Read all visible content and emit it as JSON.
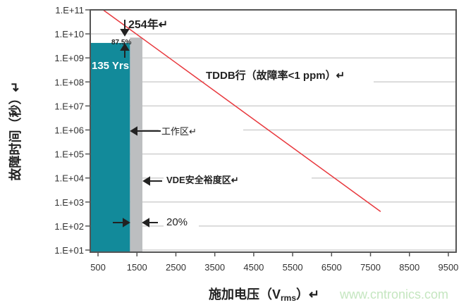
{
  "chart_data": {
    "type": "line",
    "title": "",
    "xlabel": "施加电压（Vrms）↵",
    "xlabel_main": "施加电压（V",
    "xlabel_sub": "rms",
    "xlabel_end": "）↵",
    "ylabel": "故障时间（秒）↵",
    "xlim": [
      300,
      9700
    ],
    "ylim": [
      10.0,
      100000000000.0
    ],
    "y_scale": "log",
    "grid": "horizontal",
    "x_ticks": [
      "500",
      "1500",
      "2500",
      "3500",
      "4500",
      "5500",
      "6500",
      "7500",
      "8500",
      "9500"
    ],
    "x_tick_values": [
      500,
      1500,
      2500,
      3500,
      4500,
      5500,
      6500,
      7500,
      8500,
      9500
    ],
    "y_ticks": [
      "1.E+11",
      "1.E+10",
      "1.E+09",
      "1.E+08",
      "1.E+07",
      "1.E+06",
      "1.E+05",
      "1.E+04",
      "1.E+03",
      "1.E+02",
      "1.E+01"
    ],
    "series": [
      {
        "name": "TDDB行（故障率<1 ppm）↵",
        "color": "#e8383d",
        "x": [
          630,
          7760
        ],
        "y": [
          100000000000.0,
          400.0
        ]
      }
    ],
    "regions": [
      {
        "name": "工作区↵",
        "x_range": [
          300,
          1320
        ],
        "top": 4200000000.0,
        "color": "#128a9a"
      },
      {
        "name": "VDE安全裕度区↵",
        "x_range": [
          1320,
          1640
        ],
        "top": 7000000000.0,
        "color": "#bcbec0"
      }
    ],
    "annotations": {
      "years_254": "254年↵",
      "percent_875": "87.5%",
      "years_135": "135 Yrs",
      "percent_20": "20%"
    }
  },
  "watermark": "www.cntronics.com"
}
